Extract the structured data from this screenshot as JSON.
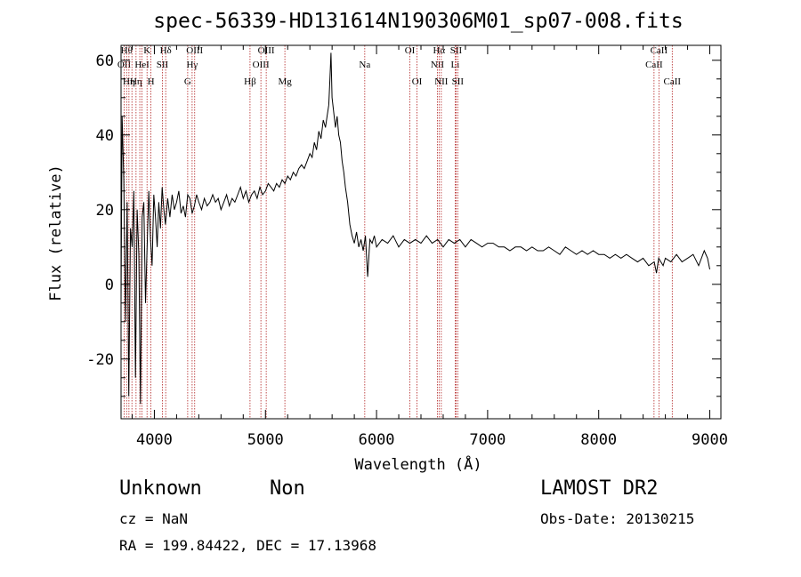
{
  "chart_data": {
    "type": "line",
    "title": "spec-56339-HD131614N190306M01_sp07-008.fits",
    "xlabel": "Wavelength (Å)",
    "ylabel": "Flux (relative)",
    "xlim": [
      3700,
      9100
    ],
    "ylim": [
      -36,
      64
    ],
    "xticks": [
      4000,
      5000,
      6000,
      7000,
      8000,
      9000
    ],
    "yticks": [
      -20,
      0,
      20,
      40,
      60
    ],
    "grid": false,
    "line_color": "#000000",
    "marker_color": "#b22222",
    "series": [
      {
        "x": [
          3700,
          3710,
          3725,
          3740,
          3755,
          3770,
          3785,
          3800,
          3815,
          3830,
          3845,
          3860,
          3875,
          3890,
          3905,
          3920,
          3935,
          3950,
          3965,
          3980,
          3995,
          4010,
          4025,
          4040,
          4055,
          4070,
          4085,
          4100,
          4120,
          4140,
          4160,
          4180,
          4200,
          4220,
          4240,
          4260,
          4280,
          4300,
          4320,
          4340,
          4360,
          4380,
          4400,
          4425,
          4450,
          4475,
          4500,
          4525,
          4550,
          4575,
          4600,
          4625,
          4650,
          4675,
          4700,
          4725,
          4750,
          4775,
          4800,
          4825,
          4850,
          4875,
          4900,
          4925,
          4950,
          4975,
          5000,
          5025,
          5050,
          5075,
          5100,
          5125,
          5150,
          5175,
          5200,
          5225,
          5250,
          5275,
          5300,
          5325,
          5350,
          5375,
          5400,
          5420,
          5440,
          5460,
          5480,
          5500,
          5520,
          5540,
          5555,
          5570,
          5580,
          5590,
          5600,
          5615,
          5630,
          5645,
          5660,
          5675,
          5690,
          5705,
          5720,
          5740,
          5760,
          5780,
          5800,
          5820,
          5840,
          5860,
          5880,
          5900,
          5920,
          5940,
          5960,
          5980,
          6000,
          6050,
          6100,
          6150,
          6200,
          6250,
          6300,
          6350,
          6400,
          6450,
          6500,
          6550,
          6600,
          6650,
          6700,
          6750,
          6800,
          6850,
          6900,
          6950,
          7000,
          7050,
          7100,
          7150,
          7200,
          7250,
          7300,
          7350,
          7400,
          7450,
          7500,
          7550,
          7600,
          7650,
          7700,
          7750,
          7800,
          7850,
          7900,
          7950,
          8000,
          8050,
          8100,
          8150,
          8200,
          8250,
          8300,
          8350,
          8400,
          8450,
          8500,
          8520,
          8540,
          8560,
          8580,
          8600,
          8650,
          8700,
          8750,
          8800,
          8850,
          8900,
          8950,
          8980,
          9000
        ],
        "values": [
          -5,
          45,
          28,
          -10,
          22,
          -30,
          15,
          10,
          25,
          -25,
          20,
          8,
          -32,
          18,
          22,
          -5,
          10,
          25,
          12,
          5,
          24,
          18,
          10,
          22,
          15,
          26,
          20,
          16,
          23,
          18,
          24,
          20,
          22,
          25,
          19,
          21,
          18,
          24,
          23,
          19,
          21,
          24,
          22,
          20,
          23,
          21,
          22,
          24,
          22,
          23,
          20,
          22,
          24,
          21,
          23,
          22,
          24,
          26,
          23,
          25,
          22,
          24,
          25,
          23,
          26,
          24,
          25,
          27,
          26,
          25,
          27,
          26,
          28,
          27,
          29,
          28,
          30,
          29,
          31,
          32,
          31,
          33,
          35,
          34,
          38,
          36,
          41,
          39,
          44,
          42,
          45,
          48,
          55,
          62,
          50,
          46,
          42,
          45,
          40,
          38,
          33,
          30,
          26,
          22,
          16,
          13,
          11,
          14,
          10,
          12,
          9,
          13,
          2,
          12,
          11,
          13,
          10,
          12,
          11,
          13,
          10,
          12,
          11,
          12,
          11,
          13,
          11,
          12,
          10,
          12,
          11,
          12,
          10,
          12,
          11,
          10,
          11,
          11,
          10,
          10,
          9,
          10,
          10,
          9,
          10,
          9,
          9,
          10,
          9,
          8,
          10,
          9,
          8,
          9,
          8,
          9,
          8,
          8,
          7,
          8,
          7,
          8,
          7,
          6,
          7,
          5,
          6,
          3,
          7,
          6,
          5,
          7,
          6,
          8,
          6,
          7,
          8,
          5,
          9,
          7,
          4
        ]
      }
    ],
    "line_markers": [
      {
        "wl": 3728,
        "label": "OII",
        "row": 1
      },
      {
        "wl": 3750,
        "label": "Hθ",
        "row": 0
      },
      {
        "wl": 3771,
        "label": "Hη",
        "row": 2
      },
      {
        "wl": 3798,
        "label": "",
        "row": 0
      },
      {
        "wl": 3835,
        "label": "Hη",
        "row": 2
      },
      {
        "wl": 3869,
        "label": "",
        "row": 0
      },
      {
        "wl": 3889,
        "label": "HeI",
        "row": 1
      },
      {
        "wl": 3934,
        "label": "K",
        "row": 0
      },
      {
        "wl": 3969,
        "label": "H",
        "row": 2
      },
      {
        "wl": 4072,
        "label": "SII",
        "row": 1
      },
      {
        "wl": 4102,
        "label": "Hδ",
        "row": 0
      },
      {
        "wl": 4300,
        "label": "G",
        "row": 2
      },
      {
        "wl": 4340,
        "label": "Hγ",
        "row": 1
      },
      {
        "wl": 4363,
        "label": "OIII",
        "row": 0
      },
      {
        "wl": 4861,
        "label": "Hβ",
        "row": 2
      },
      {
        "wl": 4959,
        "label": "OIII",
        "row": 1
      },
      {
        "wl": 5007,
        "label": "OIII",
        "row": 0
      },
      {
        "wl": 5175,
        "label": "Mg",
        "row": 2
      },
      {
        "wl": 5894,
        "label": "Na",
        "row": 1
      },
      {
        "wl": 6300,
        "label": "OI",
        "row": 0
      },
      {
        "wl": 6364,
        "label": "OI",
        "row": 2
      },
      {
        "wl": 6548,
        "label": "NII",
        "row": 1
      },
      {
        "wl": 6563,
        "label": "Hα",
        "row": 0
      },
      {
        "wl": 6583,
        "label": "NII",
        "row": 2
      },
      {
        "wl": 6708,
        "label": "Li",
        "row": 1
      },
      {
        "wl": 6716,
        "label": "SII",
        "row": 0
      },
      {
        "wl": 6731,
        "label": "SII",
        "row": 2
      },
      {
        "wl": 8498,
        "label": "CaII",
        "row": 1
      },
      {
        "wl": 8542,
        "label": "CaII",
        "row": 0
      },
      {
        "wl": 8662,
        "label": "CaII",
        "row": 2
      }
    ]
  },
  "info": {
    "object_class": "Unknown",
    "object_subclass": "Non",
    "survey": "LAMOST DR2",
    "redshift_line": "cz = NaN",
    "obs_date_line": "Obs-Date: 20130215",
    "coords_line": "RA = 199.84422, DEC =  17.13968"
  }
}
